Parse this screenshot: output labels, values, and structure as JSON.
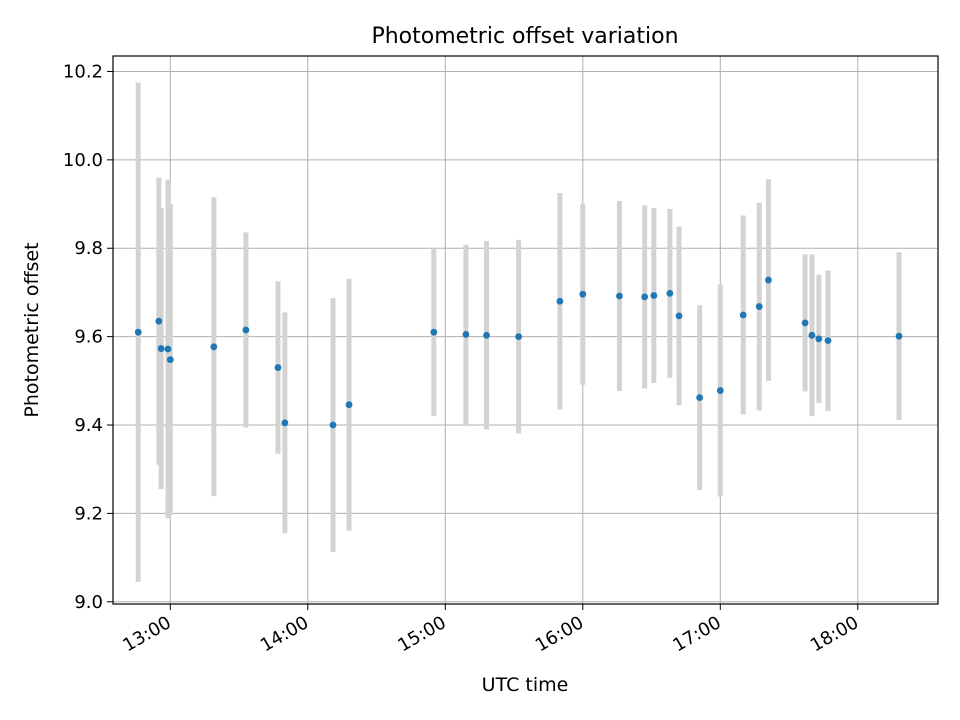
{
  "chart_data": {
    "type": "scatter",
    "title": "Photometric offset variation",
    "xlabel": "UTC time",
    "ylabel": "Photometric offset",
    "xlim": [
      "12:35",
      "18:35"
    ],
    "ylim": [
      8.995,
      10.235
    ],
    "x_ticks": [
      "13:00",
      "14:00",
      "15:00",
      "16:00",
      "17:00",
      "18:00"
    ],
    "y_ticks": [
      "9.0",
      "9.2",
      "9.4",
      "9.6",
      "9.8",
      "10.0",
      "10.2"
    ],
    "grid": true,
    "legend": "none",
    "series": [
      {
        "marker_color": "#1f77b4",
        "errorbar_color": "#d3d3d3",
        "points": [
          {
            "x": "12:46",
            "y": 9.61,
            "err": 0.565
          },
          {
            "x": "12:55",
            "y": 9.635,
            "err": 0.325
          },
          {
            "x": "12:56",
            "y": 9.573,
            "err": 0.318
          },
          {
            "x": "12:59",
            "y": 9.572,
            "err": 0.383
          },
          {
            "x": "13:00",
            "y": 9.548,
            "err": 0.352
          },
          {
            "x": "13:19",
            "y": 9.577,
            "err": 0.338
          },
          {
            "x": "13:33",
            "y": 9.615,
            "err": 0.221
          },
          {
            "x": "13:47",
            "y": 9.53,
            "err": 0.195
          },
          {
            "x": "13:50",
            "y": 9.405,
            "err": 0.25
          },
          {
            "x": "14:11",
            "y": 9.4,
            "err": 0.287
          },
          {
            "x": "14:18",
            "y": 9.446,
            "err": 0.285
          },
          {
            "x": "14:55",
            "y": 9.61,
            "err": 0.19
          },
          {
            "x": "15:09",
            "y": 9.605,
            "err": 0.203
          },
          {
            "x": "15:18",
            "y": 9.603,
            "err": 0.213
          },
          {
            "x": "15:32",
            "y": 9.6,
            "err": 0.219
          },
          {
            "x": "15:50",
            "y": 9.68,
            "err": 0.245
          },
          {
            "x": "16:00",
            "y": 9.696,
            "err": 0.205
          },
          {
            "x": "16:16",
            "y": 9.692,
            "err": 0.215
          },
          {
            "x": "16:27",
            "y": 9.69,
            "err": 0.207
          },
          {
            "x": "16:31",
            "y": 9.693,
            "err": 0.198
          },
          {
            "x": "16:38",
            "y": 9.698,
            "err": 0.191
          },
          {
            "x": "16:42",
            "y": 9.647,
            "err": 0.202
          },
          {
            "x": "16:51",
            "y": 9.462,
            "err": 0.209
          },
          {
            "x": "17:00",
            "y": 9.478,
            "err": 0.24
          },
          {
            "x": "17:10",
            "y": 9.649,
            "err": 0.225
          },
          {
            "x": "17:17",
            "y": 9.668,
            "err": 0.235
          },
          {
            "x": "17:21",
            "y": 9.728,
            "err": 0.228
          },
          {
            "x": "17:37",
            "y": 9.631,
            "err": 0.155
          },
          {
            "x": "17:40",
            "y": 9.603,
            "err": 0.183
          },
          {
            "x": "17:43",
            "y": 9.595,
            "err": 0.145
          },
          {
            "x": "17:47",
            "y": 9.591,
            "err": 0.159
          },
          {
            "x": "18:18",
            "y": 9.601,
            "err": 0.19
          }
        ]
      }
    ]
  }
}
